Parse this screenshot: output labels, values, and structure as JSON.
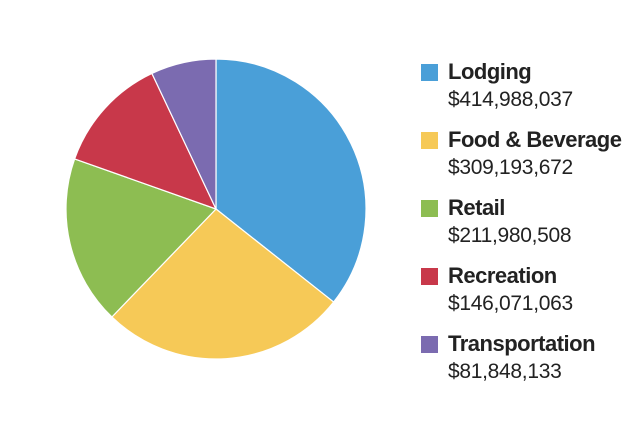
{
  "chart_data": {
    "type": "pie",
    "categories": [
      "Lodging",
      "Food & Beverage",
      "Retail",
      "Recreation",
      "Transportation"
    ],
    "values": [
      414988037,
      309193672,
      211980508,
      146071063,
      81848133
    ],
    "value_labels": [
      "$414,988,037",
      "$309,193,672",
      "$211,980,508",
      "$146,071,063",
      "$81,848,133"
    ],
    "colors": [
      "#4a9fd8",
      "#f6c957",
      "#8dbd52",
      "#c8384a",
      "#7b6bb0"
    ],
    "start": "12 o'clock",
    "direction": "clockwise",
    "legend_placement": "right"
  },
  "legend": {
    "items": [
      {
        "label": "Lodging",
        "value": "$414,988,037",
        "color": "#4a9fd8"
      },
      {
        "label": "Food & Beverage",
        "value": "$309,193,672",
        "color": "#f6c957"
      },
      {
        "label": "Retail",
        "value": "$211,980,508",
        "color": "#8dbd52"
      },
      {
        "label": "Recreation",
        "value": "$146,071,063",
        "color": "#c8384a"
      },
      {
        "label": "Transportation",
        "value": "$81,848,133",
        "color": "#7b6bb0"
      }
    ]
  }
}
